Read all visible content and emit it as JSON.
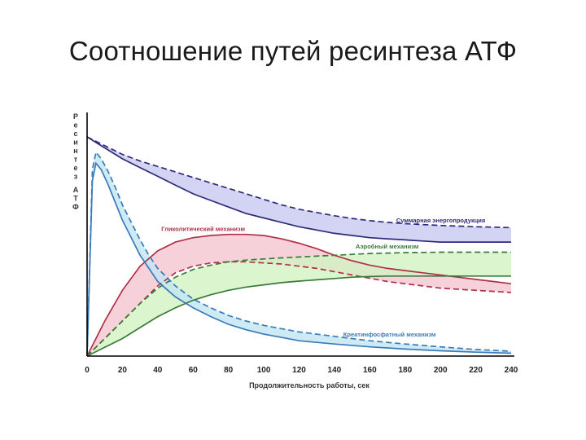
{
  "slide": {
    "title": "Соотношение путей ресинтеза АТФ"
  },
  "chart_data": {
    "type": "area",
    "xlabel": "Продолжительность работы, сек",
    "ylabel": "Ресинтез АТФ",
    "xlim": [
      0,
      240
    ],
    "ylim": [
      0,
      100
    ],
    "x_ticks": [
      "0",
      "20",
      "40",
      "60",
      "80",
      "100",
      "120",
      "140",
      "160",
      "180",
      "200",
      "220",
      "240"
    ],
    "grid": false,
    "legend": "inline-labels",
    "series": [
      {
        "name": "Суммарная энергопродукция",
        "color": "#2e2a7a",
        "fill": "#c8c8f0",
        "x": [
          0,
          10,
          20,
          30,
          40,
          50,
          60,
          70,
          80,
          90,
          100,
          110,
          120,
          130,
          140,
          150,
          160,
          170,
          180,
          190,
          200,
          210,
          220,
          230,
          240
        ],
        "solid": [
          100,
          95,
          90,
          86,
          82,
          78,
          74,
          71,
          68,
          65,
          63,
          61,
          59,
          57.5,
          56,
          55,
          54,
          53.5,
          53,
          52.5,
          52,
          52,
          52,
          52,
          52
        ],
        "dashed": [
          100,
          96,
          92,
          89,
          86.5,
          84,
          81.5,
          79,
          76.5,
          74,
          71.5,
          69,
          67,
          65.5,
          64,
          62.8,
          61.8,
          61,
          60.4,
          60,
          59.6,
          59.3,
          59,
          58.8,
          58.6
        ]
      },
      {
        "name": "Гликолитический механизм",
        "color": "#b0304a",
        "fill": "#f5c5cf",
        "x": [
          0,
          5,
          10,
          20,
          30,
          40,
          50,
          60,
          70,
          80,
          90,
          100,
          110,
          120,
          130,
          140,
          150,
          160,
          170,
          180,
          190,
          200,
          210,
          220,
          230,
          240
        ],
        "solid": [
          0,
          8,
          16,
          30,
          41,
          48,
          52,
          54,
          55,
          55.5,
          55.5,
          55,
          53.5,
          51.5,
          49,
          46,
          43.5,
          41.5,
          40,
          39,
          38,
          37,
          36,
          35,
          34,
          33
        ],
        "dashed": [
          0,
          4,
          8,
          16,
          24,
          32,
          38,
          41,
          42.5,
          43,
          43,
          42.5,
          42,
          41,
          40,
          38.5,
          37,
          35.5,
          34,
          33,
          32,
          31,
          30.5,
          30,
          29.5,
          29
        ]
      },
      {
        "name": "Аэробный механизм",
        "color": "#3a7a3a",
        "fill": "#d2f2c2",
        "x": [
          0,
          10,
          20,
          30,
          40,
          50,
          60,
          70,
          80,
          90,
          100,
          110,
          120,
          130,
          140,
          150,
          160,
          170,
          180,
          190,
          200,
          210,
          220,
          230,
          240
        ],
        "solid": [
          0,
          4,
          8,
          13,
          18,
          22,
          25.5,
          28,
          30,
          31.5,
          32.5,
          33.5,
          34.2,
          34.8,
          35.4,
          36,
          36.3,
          36.5,
          36.5,
          36.5,
          36.5,
          36.5,
          36.5,
          36.5,
          36.5
        ],
        "dashed": [
          0,
          8,
          16,
          24,
          31,
          36,
          39.5,
          41.5,
          43,
          43.8,
          44.3,
          44.8,
          45.2,
          45.6,
          46,
          46.4,
          46.8,
          47,
          47.2,
          47.3,
          47.4,
          47.4,
          47.4,
          47.4,
          47.4
        ]
      },
      {
        "name": "Креатинфосфатный механизм",
        "color": "#3a7ab8",
        "fill": "#c2e6f2",
        "x": [
          0,
          3,
          5,
          8,
          12,
          16,
          20,
          25,
          30,
          35,
          40,
          50,
          60,
          70,
          80,
          90,
          100,
          110,
          120,
          140,
          160,
          180,
          200,
          220,
          240
        ],
        "solid": [
          0,
          80,
          88,
          85,
          78,
          70,
          62,
          54,
          46,
          40,
          34,
          27,
          22,
          18,
          14.5,
          12,
          10,
          8.5,
          7,
          5.5,
          4.2,
          3.2,
          2.4,
          1.8,
          1.3
        ],
        "dashed": [
          0,
          85,
          93,
          90,
          84,
          77,
          69,
          61,
          53,
          46,
          40,
          32,
          26,
          22,
          18.5,
          16,
          14,
          12.5,
          11,
          9,
          7,
          5.5,
          4.2,
          3,
          2.2
        ]
      }
    ]
  }
}
